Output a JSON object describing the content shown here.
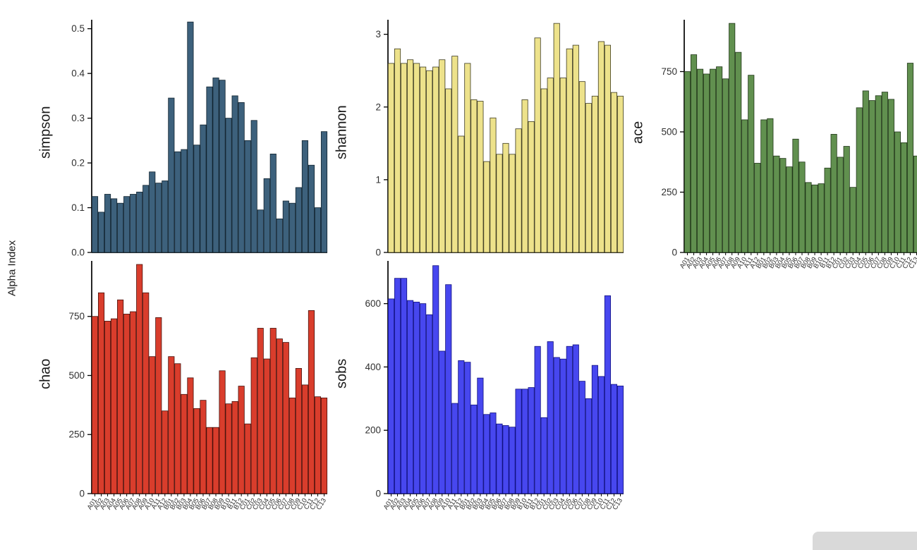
{
  "figure": {
    "y_label": "Alpha Index"
  },
  "categories": [
    "A01",
    "A02",
    "A03",
    "A04",
    "A05",
    "A06",
    "A07",
    "A08",
    "A09",
    "A10",
    "A11",
    "A12",
    "B01",
    "B02",
    "B03",
    "B04",
    "B05",
    "B06",
    "B07",
    "B08",
    "B09",
    "B10",
    "B11",
    "B12",
    "C01",
    "C02",
    "C03",
    "C04",
    "C05",
    "C06",
    "C07",
    "C08",
    "C09",
    "C10",
    "C11",
    "C12",
    "C13"
  ],
  "chart_data": [
    {
      "type": "bar",
      "facet_label": "simpson",
      "fill": "#3d617c",
      "stroke": "#10222e",
      "ylim": [
        0,
        0.52
      ],
      "yticks": [
        0,
        0.1,
        0.2,
        0.3,
        0.4,
        0.5
      ],
      "ytick_labels": [
        "0.0",
        "0.1",
        "0.2",
        "0.3",
        "0.4",
        "0.5"
      ],
      "show_x_labels": false,
      "values": [
        0.125,
        0.09,
        0.13,
        0.12,
        0.11,
        0.125,
        0.13,
        0.135,
        0.15,
        0.18,
        0.155,
        0.16,
        0.345,
        0.225,
        0.23,
        0.515,
        0.24,
        0.285,
        0.37,
        0.39,
        0.385,
        0.3,
        0.35,
        0.335,
        0.25,
        0.295,
        0.095,
        0.165,
        0.22,
        0.075,
        0.115,
        0.11,
        0.145,
        0.25,
        0.195,
        0.1,
        0.27
      ]
    },
    {
      "type": "bar",
      "facet_label": "shannon",
      "fill": "#ede28b",
      "stroke": "#3c3a20",
      "ylim": [
        0,
        3.2
      ],
      "yticks": [
        0,
        1,
        2,
        3
      ],
      "ytick_labels": [
        "0",
        "1",
        "2",
        "3"
      ],
      "show_x_labels": false,
      "values": [
        2.6,
        2.8,
        2.6,
        2.65,
        2.6,
        2.55,
        2.5,
        2.55,
        2.65,
        2.25,
        2.7,
        1.6,
        2.6,
        2.1,
        2.08,
        1.25,
        1.85,
        1.35,
        1.5,
        1.35,
        1.7,
        2.1,
        1.8,
        2.95,
        2.25,
        2.4,
        3.15,
        2.4,
        2.8,
        2.85,
        2.35,
        2.05,
        2.15,
        2.9,
        2.85,
        2.2,
        2.15
      ]
    },
    {
      "type": "bar",
      "facet_label": "ace",
      "fill": "#61904f",
      "stroke": "#203618",
      "ylim": [
        0,
        965
      ],
      "yticks": [
        0,
        250,
        500,
        750
      ],
      "ytick_labels": [
        "0",
        "250",
        "500",
        "750"
      ],
      "show_x_labels": true,
      "values": [
        750,
        820,
        760,
        740,
        760,
        770,
        720,
        950,
        830,
        550,
        735,
        370,
        550,
        555,
        400,
        390,
        355,
        470,
        375,
        290,
        280,
        285,
        350,
        490,
        395,
        440,
        270,
        600,
        670,
        630,
        650,
        665,
        635,
        500,
        455,
        785,
        400
      ]
    },
    {
      "type": "bar",
      "facet_label": "chao",
      "fill": "#d93d2c",
      "stroke": "#47100a",
      "ylim": [
        0,
        985
      ],
      "yticks": [
        0,
        250,
        500,
        750
      ],
      "ytick_labels": [
        "0",
        "250",
        "500",
        "750"
      ],
      "show_x_labels": true,
      "values": [
        750,
        850,
        730,
        740,
        820,
        760,
        770,
        970,
        850,
        580,
        745,
        350,
        580,
        550,
        420,
        490,
        360,
        395,
        280,
        280,
        520,
        380,
        390,
        455,
        295,
        575,
        700,
        570,
        700,
        655,
        640,
        405,
        530,
        460,
        775,
        410,
        405
      ]
    },
    {
      "type": "bar",
      "facet_label": "sobs",
      "fill": "#4747ef",
      "stroke": "#101080",
      "ylim": [
        0,
        735
      ],
      "yticks": [
        0,
        200,
        400,
        600
      ],
      "ytick_labels": [
        "0",
        "200",
        "400",
        "600"
      ],
      "show_x_labels": true,
      "values": [
        615,
        680,
        680,
        610,
        605,
        600,
        565,
        720,
        450,
        660,
        285,
        420,
        415,
        280,
        365,
        250,
        255,
        220,
        215,
        210,
        330,
        330,
        335,
        465,
        240,
        480,
        430,
        425,
        465,
        470,
        355,
        300,
        405,
        370,
        625,
        345,
        340
      ]
    }
  ]
}
